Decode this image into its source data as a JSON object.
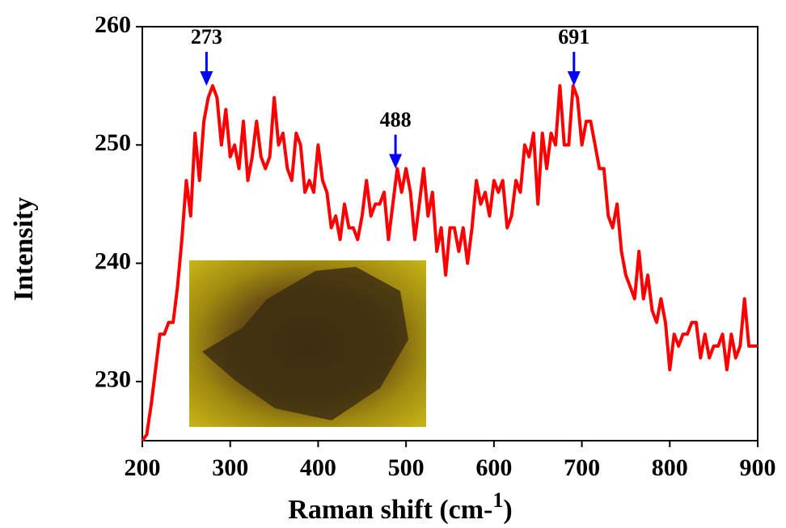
{
  "chart_data": {
    "type": "line",
    "xlabel": [
      "Raman shift (cm-",
      "1",
      ")"
    ],
    "ylabel": "Intensity",
    "x": [
      200,
      205,
      210,
      215,
      220,
      225,
      230,
      235,
      240,
      245,
      250,
      255,
      260,
      265,
      270,
      275,
      280,
      285,
      290,
      295,
      300,
      305,
      310,
      315,
      320,
      325,
      330,
      335,
      340,
      345,
      350,
      355,
      360,
      365,
      370,
      375,
      380,
      385,
      390,
      395,
      400,
      405,
      410,
      415,
      420,
      425,
      430,
      435,
      440,
      445,
      450,
      455,
      460,
      465,
      470,
      475,
      480,
      485,
      490,
      495,
      500,
      505,
      510,
      515,
      520,
      525,
      530,
      535,
      540,
      545,
      550,
      555,
      560,
      565,
      570,
      575,
      580,
      585,
      590,
      595,
      600,
      605,
      610,
      615,
      620,
      625,
      630,
      635,
      640,
      645,
      650,
      655,
      660,
      665,
      670,
      675,
      680,
      685,
      690,
      695,
      700,
      705,
      710,
      715,
      720,
      725,
      730,
      735,
      740,
      745,
      750,
      755,
      760,
      765,
      770,
      775,
      780,
      785,
      790,
      795,
      800,
      805,
      810,
      815,
      820,
      825,
      830,
      835,
      840,
      845,
      850,
      855,
      860,
      865,
      870,
      875,
      880,
      885,
      890,
      895,
      900
    ],
    "series": [
      {
        "color": "#ff0000",
        "values": [
          225,
          225.5,
          228,
          231,
          234,
          234,
          235,
          235,
          238,
          242,
          247,
          244,
          251,
          247,
          252,
          254,
          255,
          254,
          250,
          253,
          249,
          250,
          248,
          252,
          247,
          249,
          252,
          249,
          248,
          249,
          254,
          250,
          251,
          248,
          247,
          251,
          250,
          246,
          247,
          246,
          250,
          247,
          246,
          243,
          244,
          242,
          245,
          243,
          243,
          242,
          244,
          247,
          244,
          245,
          245,
          246,
          242,
          245,
          248,
          246,
          248,
          246,
          242,
          245,
          248,
          244,
          246,
          241,
          243,
          239,
          243,
          243,
          241,
          243,
          240,
          243,
          247,
          245,
          246,
          244,
          247,
          246,
          247,
          243,
          244,
          247,
          246,
          250,
          249,
          251,
          245,
          251,
          248,
          251,
          250,
          255,
          250,
          250,
          255,
          254,
          250,
          252,
          252,
          250,
          248,
          248,
          244,
          243,
          245,
          241,
          239,
          238,
          237,
          241,
          237,
          239,
          236,
          235,
          237,
          235,
          231,
          234,
          233,
          234,
          234,
          235,
          235,
          232,
          234,
          232,
          233,
          233,
          234,
          231,
          234,
          232,
          233,
          237,
          233,
          233,
          233
        ]
      }
    ],
    "annotations": [
      {
        "x": 273,
        "y": 255,
        "color": "#0000ff"
      },
      {
        "x": 488,
        "y": 248,
        "color": "#0000ff"
      },
      {
        "x": 691,
        "y": 255,
        "color": "#0000ff"
      }
    ],
    "xlim": [
      200,
      900
    ],
    "ylim": [
      225,
      260
    ],
    "xticks": [
      200,
      300,
      400,
      500,
      600,
      700,
      800,
      900
    ],
    "yticks": [
      230,
      240,
      250,
      260
    ]
  }
}
